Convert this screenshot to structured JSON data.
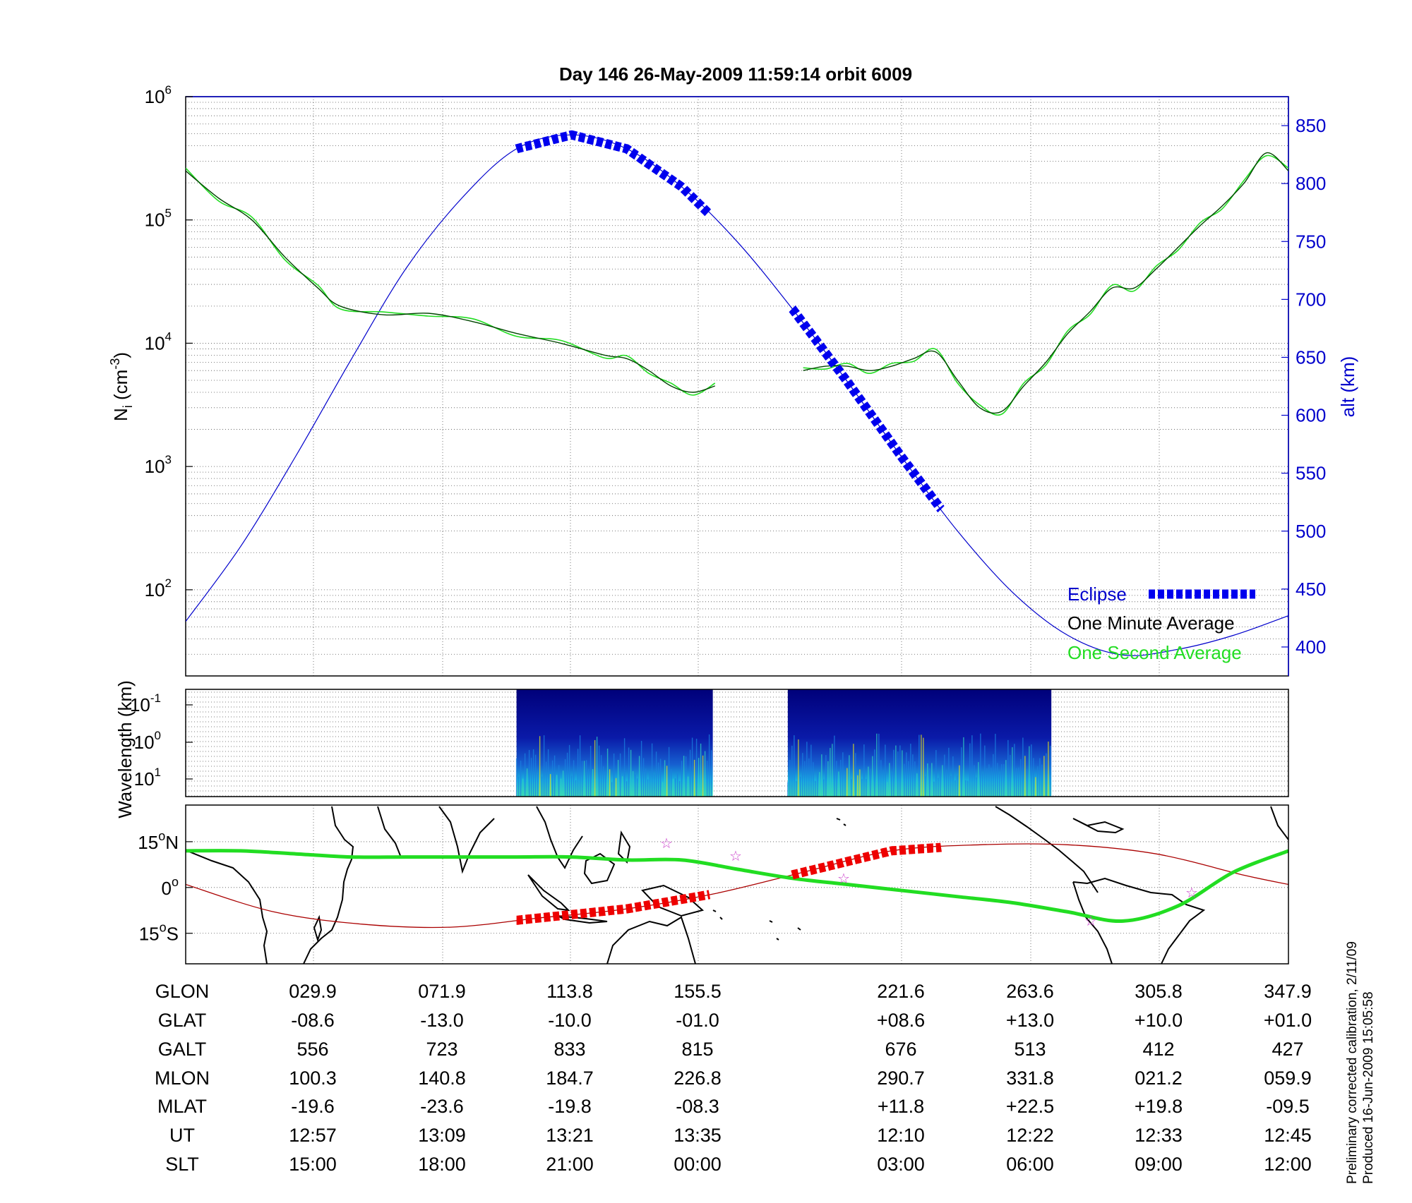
{
  "title": "Day 146  26-May-2009 11:59:14   orbit 6009",
  "chart_data": [
    {
      "type": "line",
      "panel": "ion-density",
      "ylabel_left": "N_i (cm^-3)",
      "ylabel_left_main": "N",
      "ylabel_left_sub": "i",
      "ylabel_left_unit": "(cm",
      "ylabel_left_exp": "-3",
      "ylabel_left_close": ")",
      "ylabel_right": "alt (km)",
      "yscale_left": "log",
      "ylim_left": [
        20,
        1000000
      ],
      "yticks_left": [
        {
          "base": "10",
          "exp": "6"
        },
        {
          "base": "10",
          "exp": "5"
        },
        {
          "base": "10",
          "exp": "4"
        },
        {
          "base": "10",
          "exp": "3"
        },
        {
          "base": "10",
          "exp": "2"
        }
      ],
      "ylim_right": [
        375,
        875
      ],
      "yticks_right": [
        "850",
        "800",
        "750",
        "700",
        "650",
        "600",
        "550",
        "500",
        "450",
        "400"
      ],
      "xlim": [
        0,
        100
      ],
      "grid": true,
      "legend": {
        "placement": "bottom-right",
        "entries": [
          "Eclipse",
          "One Minute Average",
          "One Second Average"
        ]
      },
      "colors": {
        "altitude": "#0000cc",
        "eclipse": "#0000ee",
        "minute": "#004400",
        "second": "#22dd22"
      },
      "series_altitude_km": {
        "x": [
          0,
          5,
          10,
          15,
          20,
          25,
          30,
          35,
          40,
          45,
          50,
          55,
          60,
          65,
          70,
          75,
          80,
          85,
          90,
          95,
          100
        ],
        "y": [
          422,
          487,
          565,
          648,
          727,
          787,
          830,
          842,
          830,
          797,
          750,
          692,
          629,
          563,
          500,
          447,
          410,
          393,
          398,
          410,
          427
        ]
      },
      "eclipse_segments": [
        {
          "x": [
            30,
            47.5
          ]
        },
        {
          "x": [
            55,
            68.5
          ]
        }
      ],
      "series_minute_average": [
        {
          "x": [
            0,
            3,
            6,
            9,
            12,
            14,
            18,
            22,
            26,
            30,
            34,
            38,
            40,
            42,
            44,
            46,
            48,
            50,
            52,
            54,
            56,
            58,
            60,
            62,
            64,
            66,
            68,
            70,
            72,
            74,
            76,
            78,
            80,
            82,
            84,
            86,
            88,
            90,
            92,
            94,
            96,
            98,
            100
          ],
          "y": [
            250000,
            150000,
            100000,
            50000,
            28000,
            20000,
            17000,
            17500,
            15000,
            12000,
            10000,
            8000,
            7500,
            6000,
            4500,
            4000,
            4500,
            null,
            null,
            null,
            6000,
            6500,
            6500,
            6000,
            6500,
            7500,
            8500,
            5000,
            3000,
            2800,
            4500,
            7000,
            12000,
            18000,
            28000,
            28000,
            40000,
            60000,
            90000,
            130000,
            200000,
            350000,
            250000
          ]
        }
      ]
    },
    {
      "type": "heatmap",
      "panel": "spectrogram",
      "ylabel": "Wavelength (km)",
      "yscale": "log",
      "yticks": [
        {
          "base": "10",
          "exp": "-1"
        },
        {
          "base": "10",
          "exp": "0"
        },
        {
          "base": "10",
          "exp": "1"
        }
      ],
      "active_intervals_x": [
        [
          30,
          47.8
        ],
        [
          54.6,
          78.5
        ]
      ],
      "colormap": "jet"
    },
    {
      "type": "line",
      "panel": "ground-track-map",
      "yticks": [
        {
          "value": "15",
          "unit": "N"
        },
        {
          "value": "0",
          "unit": ""
        },
        {
          "value": "15",
          "unit": "S"
        }
      ],
      "ylim": [
        -25,
        27
      ],
      "series_satellite_track": {
        "color": "#22dd22",
        "x": [
          0,
          5,
          10,
          15,
          20,
          25,
          30,
          35,
          40,
          45,
          50,
          55,
          60,
          65,
          70,
          75,
          80,
          85,
          90,
          95,
          100
        ],
        "y": [
          12,
          12,
          11,
          10,
          10,
          10,
          10,
          10,
          9,
          9,
          6,
          3,
          1,
          -1,
          -3,
          -5,
          -8,
          -11,
          -6,
          5,
          12
        ]
      },
      "series_magnetic_equator": {
        "color": "#aa0000",
        "x": [
          0,
          8,
          16,
          24,
          32,
          40,
          48,
          56,
          64,
          72,
          80,
          88,
          96,
          100
        ],
        "y": [
          1,
          -8,
          -12,
          -13,
          -10,
          -7,
          -2,
          5,
          12,
          14,
          14,
          11,
          4,
          1
        ]
      },
      "eclipse_segments": [
        {
          "x": [
            30,
            47.5
          ]
        },
        {
          "x": [
            55,
            68.5
          ]
        }
      ]
    }
  ],
  "table": {
    "rows": [
      {
        "label": "GLON",
        "values": [
          "029.9",
          "071.9",
          "113.8",
          "155.5",
          "221.6",
          "263.6",
          "305.8",
          "347.9"
        ]
      },
      {
        "label": "GLAT",
        "values": [
          "-08.6",
          "-13.0",
          "-10.0",
          "-01.0",
          "+08.6",
          "+13.0",
          "+10.0",
          "+01.0"
        ]
      },
      {
        "label": "GALT",
        "values": [
          "556",
          "723",
          "833",
          "815",
          "676",
          "513",
          "412",
          "427"
        ]
      },
      {
        "label": "MLON",
        "values": [
          "100.3",
          "140.8",
          "184.7",
          "226.8",
          "290.7",
          "331.8",
          "021.2",
          "059.9"
        ]
      },
      {
        "label": "MLAT",
        "values": [
          "-19.6",
          "-23.6",
          "-19.8",
          "-08.3",
          "+11.8",
          "+22.5",
          "+19.8",
          "-09.5"
        ]
      },
      {
        "label": "UT",
        "values": [
          "12:57",
          "13:09",
          "13:21",
          "13:35",
          "12:10",
          "12:22",
          "12:33",
          "12:45"
        ]
      },
      {
        "label": "SLT",
        "values": [
          "15:00",
          "18:00",
          "21:00",
          "00:00",
          "03:00",
          "06:00",
          "09:00",
          "12:00"
        ]
      }
    ]
  },
  "side_notes": {
    "line1": "Preliminary corrected calibration, 2/11/09",
    "line2": "Produced 16-Jun-2009 15:05:58"
  }
}
